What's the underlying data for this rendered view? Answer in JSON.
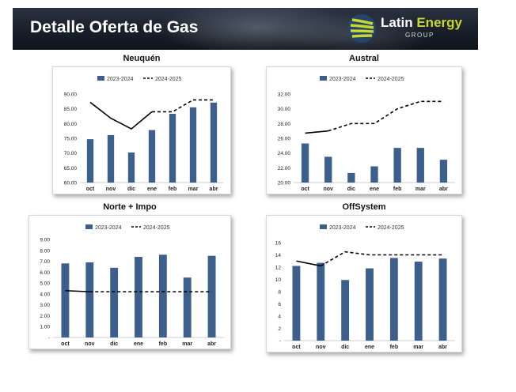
{
  "header": {
    "title": "Detalle Oferta de Gas",
    "logo_brand_1": "Latin",
    "logo_brand_2": "Energy",
    "logo_sub": "GROUP",
    "logo_icon": "latin-energy-logo-icon"
  },
  "colors": {
    "bar": "#3d5f8c",
    "line": "#000000",
    "banner": "#1b222d",
    "logo_accent": "#c9d72a"
  },
  "chart_data": [
    {
      "type": "bar",
      "title": "Neuquén",
      "categories": [
        "oct",
        "nov",
        "dic",
        "ene",
        "feb",
        "mar",
        "abr"
      ],
      "ylim": [
        60,
        90
      ],
      "yticks": [
        "60.00",
        "65.00",
        "70.00",
        "75.00",
        "80.00",
        "85.00",
        "90.00"
      ],
      "series": [
        {
          "name": "2023-2024",
          "type": "bar",
          "values": [
            74.7,
            76.1,
            70.2,
            77.8,
            83.3,
            85.5,
            87.1
          ]
        },
        {
          "name": "2024-2025",
          "type": "line",
          "values": [
            87.2,
            81.8,
            78.2,
            84.0,
            84.0,
            88.0,
            88.0
          ],
          "dashed_from": 3
        }
      ],
      "legend": "top-center"
    },
    {
      "type": "bar",
      "title": "Austral",
      "categories": [
        "oct",
        "nov",
        "dic",
        "ene",
        "feb",
        "mar",
        "abr"
      ],
      "ylim": [
        20,
        32
      ],
      "yticks": [
        "20.00",
        "22.00",
        "24.00",
        "26.00",
        "28.00",
        "30.00",
        "32.00"
      ],
      "series": [
        {
          "name": "2023-2024",
          "type": "bar",
          "values": [
            25.3,
            23.5,
            21.3,
            22.2,
            24.7,
            24.7,
            23.1
          ]
        },
        {
          "name": "2024-2025",
          "type": "line",
          "values": [
            26.7,
            27.0,
            28.0,
            28.0,
            30.0,
            31.0,
            31.0
          ],
          "dashed_from": 1
        }
      ],
      "legend": "top-center"
    },
    {
      "type": "bar",
      "title": "Norte + Impo",
      "categories": [
        "oct",
        "nov",
        "dic",
        "ene",
        "feb",
        "mar",
        "abr"
      ],
      "ylim": [
        0,
        9
      ],
      "yticks": [
        "-",
        "1.00",
        "2.00",
        "3.00",
        "4.00",
        "5.00",
        "6.00",
        "7.00",
        "8.00",
        "9.00"
      ],
      "series": [
        {
          "name": "2023-2024",
          "type": "bar",
          "values": [
            6.8,
            6.9,
            6.4,
            7.4,
            7.6,
            5.5,
            7.5
          ]
        },
        {
          "name": "2024-2025",
          "type": "line",
          "values": [
            4.3,
            4.2,
            4.2,
            4.2,
            4.2,
            4.2,
            4.2
          ],
          "dashed_from": 1
        }
      ],
      "legend": "top-center"
    },
    {
      "type": "bar",
      "title": "OffSystem",
      "categories": [
        "oct",
        "nov",
        "dic",
        "ene",
        "feb",
        "mar",
        "abr"
      ],
      "ylim": [
        0,
        16
      ],
      "yticks": [
        "-",
        "2",
        "4",
        "6",
        "8",
        "10",
        "12",
        "14",
        "16"
      ],
      "series": [
        {
          "name": "2023-2024",
          "type": "bar",
          "values": [
            12.2,
            12.7,
            9.9,
            11.8,
            13.5,
            12.9,
            13.4
          ]
        },
        {
          "name": "2024-2025",
          "type": "line",
          "values": [
            13.0,
            12.2,
            14.5,
            14.0,
            14.0,
            14.0,
            14.0
          ],
          "dashed_from": 1
        }
      ],
      "legend": "top-center"
    }
  ]
}
